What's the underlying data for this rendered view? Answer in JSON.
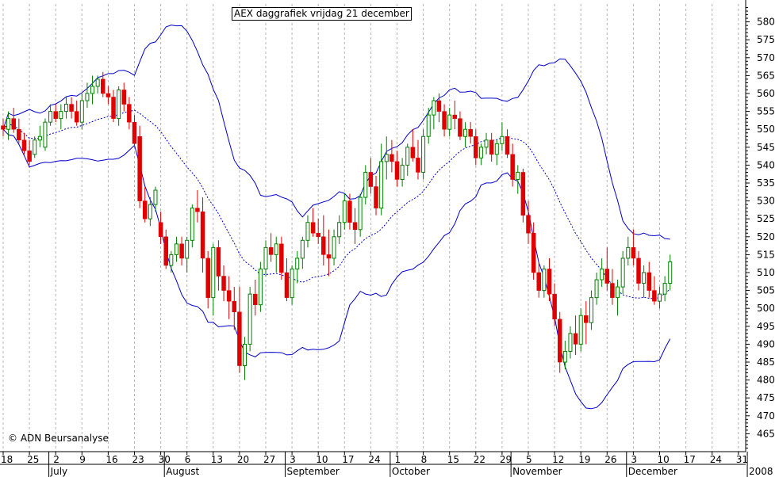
{
  "chart_data": {
    "type": "candlestick",
    "title": "AEX daggrafiek vrijdag 21 december",
    "copyright": "© ADN Beursanalyse",
    "ylim": [
      460,
      585
    ],
    "yticks": [
      465,
      470,
      475,
      480,
      485,
      490,
      495,
      500,
      505,
      510,
      515,
      520,
      525,
      530,
      535,
      540,
      545,
      550,
      555,
      560,
      565,
      570,
      575,
      580
    ],
    "xlim": [
      0,
      134
    ],
    "grid": true,
    "xtick_labels": [
      {
        "i": 0,
        "label": "18"
      },
      {
        "i": 5,
        "label": "25"
      },
      {
        "i": 10,
        "label": "2"
      },
      {
        "i": 15,
        "label": "9"
      },
      {
        "i": 20,
        "label": "16"
      },
      {
        "i": 25,
        "label": "23"
      },
      {
        "i": 30,
        "label": "30"
      },
      {
        "i": 35,
        "label": "6"
      },
      {
        "i": 40,
        "label": "13"
      },
      {
        "i": 45,
        "label": "20"
      },
      {
        "i": 50,
        "label": "27"
      },
      {
        "i": 55,
        "label": "3"
      },
      {
        "i": 60,
        "label": "10"
      },
      {
        "i": 65,
        "label": "17"
      },
      {
        "i": 70,
        "label": "24"
      },
      {
        "i": 75,
        "label": "1"
      },
      {
        "i": 80,
        "label": "8"
      },
      {
        "i": 85,
        "label": "15"
      },
      {
        "i": 90,
        "label": "22"
      },
      {
        "i": 95,
        "label": "29"
      },
      {
        "i": 100,
        "label": "5"
      },
      {
        "i": 105,
        "label": "12"
      },
      {
        "i": 110,
        "label": "19"
      },
      {
        "i": 115,
        "label": "26"
      },
      {
        "i": 120,
        "label": "3"
      },
      {
        "i": 125,
        "label": "10"
      },
      {
        "i": 130,
        "label": "17"
      },
      {
        "i": 135,
        "label": "24"
      },
      {
        "i": 140,
        "label": "31"
      }
    ],
    "month_labels": [
      {
        "i": 9,
        "label": "July"
      },
      {
        "i": 31,
        "label": "August"
      },
      {
        "i": 54,
        "label": "September"
      },
      {
        "i": 74,
        "label": "October"
      },
      {
        "i": 97,
        "label": "November"
      },
      {
        "i": 119,
        "label": "December"
      },
      {
        "i": 142,
        "label": "2008"
      }
    ],
    "candles": [
      [
        551,
        553,
        548,
        550
      ],
      [
        550,
        555,
        547,
        553
      ],
      [
        553,
        556,
        549,
        550
      ],
      [
        550,
        553,
        546,
        547
      ],
      [
        547,
        549,
        543,
        544
      ],
      [
        544,
        547,
        540,
        541
      ],
      [
        543,
        548,
        542,
        547
      ],
      [
        547,
        551,
        545,
        548
      ],
      [
        545,
        553,
        544,
        552
      ],
      [
        552,
        557,
        551,
        555
      ],
      [
        555,
        557,
        552,
        553
      ],
      [
        553,
        557,
        550,
        555
      ],
      [
        555,
        559,
        553,
        557
      ],
      [
        557,
        559,
        553,
        555
      ],
      [
        555,
        558,
        551,
        552
      ],
      [
        552,
        560,
        550,
        558
      ],
      [
        558,
        563,
        556,
        560
      ],
      [
        560,
        565,
        557,
        562
      ],
      [
        562,
        565,
        560,
        564
      ],
      [
        564,
        566,
        559,
        560
      ],
      [
        560,
        562,
        557,
        559
      ],
      [
        559,
        561,
        552,
        553
      ],
      [
        553,
        562,
        551,
        561
      ],
      [
        561,
        563,
        555,
        557
      ],
      [
        557,
        559,
        550,
        552
      ],
      [
        552,
        554,
        545,
        546
      ],
      [
        548,
        551,
        528,
        530
      ],
      [
        530,
        534,
        524,
        525
      ],
      [
        525,
        531,
        523,
        529
      ],
      [
        529,
        534,
        527,
        533
      ],
      [
        524,
        527,
        518,
        520
      ],
      [
        520,
        522,
        511,
        512
      ],
      [
        512,
        516,
        510,
        515
      ],
      [
        515,
        520,
        513,
        518
      ],
      [
        518,
        520,
        512,
        514
      ],
      [
        514,
        520,
        510,
        519
      ],
      [
        519,
        529,
        517,
        528
      ],
      [
        528,
        533,
        524,
        527
      ],
      [
        527,
        531,
        510,
        514
      ],
      [
        514,
        516,
        500,
        503
      ],
      [
        503,
        518,
        498,
        517
      ],
      [
        517,
        519,
        505,
        509
      ],
      [
        509,
        512,
        502,
        505
      ],
      [
        505,
        509,
        497,
        502
      ],
      [
        502,
        506,
        494,
        499
      ],
      [
        499,
        506,
        482,
        484
      ],
      [
        484,
        492,
        480,
        490
      ],
      [
        490,
        506,
        488,
        504
      ],
      [
        504,
        508,
        498,
        501
      ],
      [
        501,
        513,
        499,
        511
      ],
      [
        511,
        519,
        509,
        517
      ],
      [
        517,
        521,
        513,
        515
      ],
      [
        515,
        520,
        510,
        518
      ],
      [
        518,
        520,
        508,
        510
      ],
      [
        510,
        514,
        502,
        503
      ],
      [
        503,
        512,
        501,
        511
      ],
      [
        511,
        516,
        507,
        514
      ],
      [
        514,
        520,
        511,
        519
      ],
      [
        519,
        526,
        517,
        524
      ],
      [
        524,
        528,
        520,
        521
      ],
      [
        521,
        525,
        518,
        520
      ],
      [
        520,
        526,
        512,
        515
      ],
      [
        515,
        522,
        509,
        514
      ],
      [
        514,
        522,
        512,
        520
      ],
      [
        520,
        526,
        518,
        524
      ],
      [
        524,
        532,
        522,
        530
      ],
      [
        530,
        532,
        522,
        524
      ],
      [
        524,
        528,
        518,
        522
      ],
      [
        522,
        532,
        520,
        531
      ],
      [
        531,
        540,
        529,
        538
      ],
      [
        538,
        542,
        532,
        534
      ],
      [
        534,
        537,
        526,
        528
      ],
      [
        528,
        546,
        526,
        541
      ],
      [
        541,
        548,
        536,
        543
      ],
      [
        543,
        547,
        538,
        541
      ],
      [
        541,
        544,
        534,
        536
      ],
      [
        536,
        542,
        534,
        540
      ],
      [
        540,
        546,
        537,
        545
      ],
      [
        545,
        550,
        541,
        542
      ],
      [
        542,
        547,
        536,
        538
      ],
      [
        538,
        550,
        536,
        548
      ],
      [
        548,
        556,
        546,
        554
      ],
      [
        554,
        559,
        550,
        558
      ],
      [
        558,
        560,
        552,
        555
      ],
      [
        555,
        557,
        548,
        550
      ],
      [
        550,
        556,
        548,
        554
      ],
      [
        554,
        558,
        550,
        553
      ],
      [
        553,
        555,
        547,
        548
      ],
      [
        548,
        552,
        545,
        550
      ],
      [
        550,
        552,
        546,
        548
      ],
      [
        548,
        550,
        540,
        542
      ],
      [
        542,
        546,
        540,
        545
      ],
      [
        545,
        549,
        543,
        547
      ],
      [
        547,
        549,
        541,
        543
      ],
      [
        543,
        547,
        540,
        546
      ],
      [
        546,
        552,
        544,
        548
      ],
      [
        548,
        550,
        542,
        543
      ],
      [
        543,
        546,
        534,
        536
      ],
      [
        536,
        540,
        532,
        538
      ],
      [
        538,
        539,
        524,
        526
      ],
      [
        526,
        530,
        518,
        521
      ],
      [
        521,
        524,
        508,
        510
      ],
      [
        510,
        513,
        503,
        505
      ],
      [
        505,
        512,
        503,
        511
      ],
      [
        511,
        514,
        502,
        504
      ],
      [
        504,
        507,
        495,
        497
      ],
      [
        497,
        499,
        482,
        485
      ],
      [
        485,
        491,
        483,
        488
      ],
      [
        488,
        495,
        486,
        493
      ],
      [
        493,
        498,
        487,
        490
      ],
      [
        490,
        500,
        488,
        498
      ],
      [
        498,
        502,
        490,
        496
      ],
      [
        496,
        505,
        494,
        503
      ],
      [
        503,
        510,
        501,
        508
      ],
      [
        508,
        514,
        506,
        511
      ],
      [
        511,
        517,
        505,
        507
      ],
      [
        507,
        511,
        501,
        503
      ],
      [
        503,
        508,
        498,
        506
      ],
      [
        506,
        516,
        504,
        514
      ],
      [
        514,
        520,
        512,
        517
      ],
      [
        517,
        522,
        512,
        514
      ],
      [
        514,
        516,
        505,
        507
      ],
      [
        507,
        512,
        503,
        510
      ],
      [
        510,
        513,
        503,
        505
      ],
      [
        505,
        509,
        501,
        502
      ],
      [
        502,
        506,
        500,
        504
      ],
      [
        504,
        509,
        502,
        507
      ],
      [
        507,
        515,
        505,
        513
      ]
    ]
  }
}
